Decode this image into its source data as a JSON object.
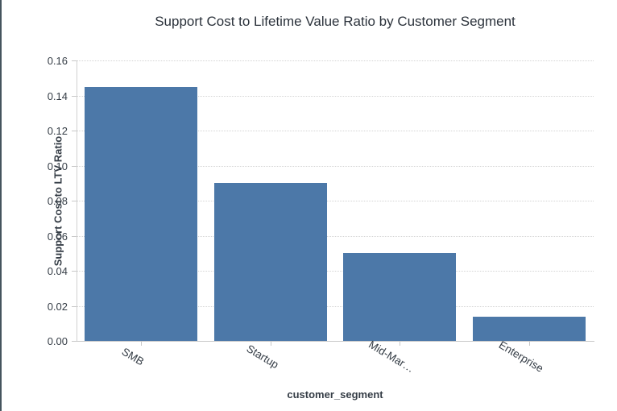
{
  "window": {
    "left_border_color": "#45545e",
    "background": "#ffffff"
  },
  "chart_data": {
    "type": "bar",
    "title": "Support Cost to Lifetime Value Ratio by Customer Segment",
    "xlabel": "customer_segment",
    "ylabel": "Support Cost to LTV Ratio",
    "categories": [
      "SMB",
      "Startup",
      "Mid-Mar…",
      "Enterprise"
    ],
    "values": [
      0.145,
      0.09,
      0.05,
      0.014
    ],
    "ylim": [
      0,
      0.16
    ],
    "ytick_values": [
      0,
      0.02,
      0.04,
      0.06,
      0.08,
      0.1,
      0.12,
      0.14,
      0.16
    ],
    "ytick_labels": [
      "0.00",
      "0.02",
      "0.04",
      "0.06",
      "0.08",
      "0.10",
      "0.12",
      "0.14",
      "0.16"
    ],
    "bar_color": "#4C78A8",
    "grid": {
      "horizontal": true,
      "style": "dotted",
      "color": "#d4d4d4"
    },
    "axis_color": "#c8c8c8",
    "title_color": "#2b323b",
    "text_color": "#353d46",
    "x_label_angle_deg": 31,
    "legend": null
  }
}
